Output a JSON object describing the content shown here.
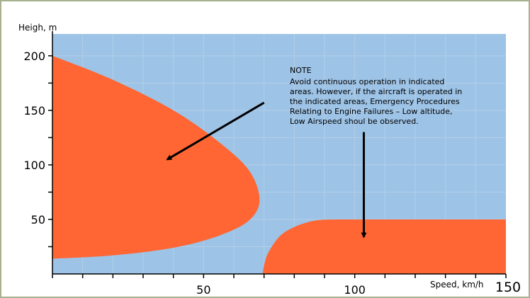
{
  "chart_data": {
    "type": "area",
    "title": "",
    "xlabel": "Speed, km/h",
    "ylabel": "Heigh, m",
    "xlim": [
      0,
      150
    ],
    "ylim": [
      0,
      220
    ],
    "x_ticks": [
      50,
      100,
      150
    ],
    "y_ticks": [
      50,
      100,
      150,
      200
    ],
    "grid": true,
    "colors": {
      "background": "#9dc3e6",
      "grid": "#b4cfe9",
      "avoid_area": "#ff6633",
      "axis": "#000000",
      "arrow": "#000000"
    },
    "series": [
      {
        "region": "low-airspeed-area",
        "x": [
          0,
          20,
          40,
          55,
          65,
          68.5,
          65,
          55,
          40,
          20,
          0
        ],
        "y": [
          200,
          178,
          150,
          121,
          95,
          68,
          49,
          35,
          24,
          17,
          14
        ]
      },
      {
        "region": "low-altitude-area",
        "x": [
          69.5,
          71,
          75,
          80,
          87,
          95,
          150
        ],
        "y": [
          0,
          17,
          34,
          43,
          49,
          50,
          50
        ]
      }
    ],
    "annotations": {
      "note_title": "NOTE",
      "note_lines": [
        "Avoid continuous operation in indicated",
        "areas. However, if the aircraft is operated in",
        "the indicated areas, Emergency Procedures",
        "Relating to Engine Failures – Low altitude,",
        "Low Airspeed shoul be observed."
      ],
      "arrows": [
        {
          "from": [
            70,
            157
          ],
          "to": [
            38,
            105
          ]
        },
        {
          "from": [
            103,
            130
          ],
          "to": [
            103,
            34
          ]
        }
      ]
    }
  }
}
